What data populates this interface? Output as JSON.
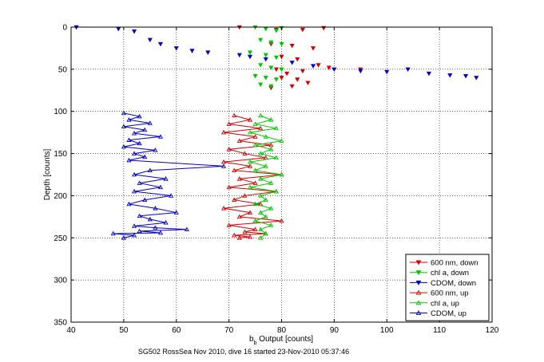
{
  "chart_data": {
    "type": "scatter",
    "title": "",
    "xlabel_main": "b",
    "xlabel_sub": "b",
    "xlabel_rest": " Output [counts]",
    "ylabel": "Depth [counts]",
    "caption": "SG502 RossSea Nov 2010, dive 16 started 23-Nov-2010 05:37:46",
    "xlim": [
      40,
      120
    ],
    "ylim": [
      0,
      350
    ],
    "y_inverted": true,
    "grid": true,
    "x_ticks": [
      "40",
      "50",
      "60",
      "70",
      "80",
      "90",
      "100",
      "110",
      "120"
    ],
    "y_ticks": [
      "0",
      "50",
      "100",
      "150",
      "200",
      "250",
      "300",
      "350"
    ],
    "legend_position": "bottom-right",
    "series": [
      {
        "name": "600 nm, down",
        "color": "#d40000",
        "marker": "triangle-down",
        "connected": false,
        "x": [
          72,
          79,
          84,
          88,
          78,
          82,
          86,
          80,
          83,
          87,
          79,
          81,
          84,
          89,
          95,
          80,
          83,
          85,
          82,
          78
        ],
        "y": [
          0,
          3,
          3,
          1,
          20,
          22,
          25,
          35,
          38,
          45,
          50,
          55,
          52,
          48,
          50,
          60,
          62,
          66,
          70,
          72
        ]
      },
      {
        "name": "chl a, down",
        "color": "#00c800",
        "marker": "triangle-down",
        "connected": false,
        "x": [
          75,
          77,
          79,
          80,
          76,
          78,
          80,
          74,
          77,
          79,
          76,
          78,
          80,
          75,
          77,
          79,
          76,
          78
        ],
        "y": [
          0,
          2,
          4,
          1,
          15,
          18,
          20,
          30,
          33,
          36,
          45,
          48,
          50,
          58,
          60,
          62,
          68,
          70
        ]
      },
      {
        "name": "CDOM, down",
        "color": "#0000c8",
        "marker": "triangle-down",
        "connected": false,
        "x": [
          41,
          49,
          52,
          55,
          57,
          60,
          63,
          66,
          72,
          74,
          77,
          82,
          86,
          90,
          95,
          100,
          104,
          108,
          112,
          115,
          117
        ],
        "y": [
          0,
          2,
          5,
          15,
          20,
          25,
          28,
          30,
          33,
          35,
          38,
          42,
          46,
          50,
          52,
          53,
          50,
          55,
          57,
          58,
          60
        ]
      },
      {
        "name": "600 nm, up",
        "color": "#d40000",
        "marker": "triangle-up",
        "connected": true,
        "x": [
          71,
          74,
          70,
          76,
          69,
          75,
          72,
          78,
          70,
          73,
          77,
          69,
          74,
          71,
          80,
          72,
          75,
          70,
          79,
          73,
          71,
          76,
          69,
          74,
          72,
          80,
          70,
          75,
          73,
          77,
          71,
          74,
          72
        ],
        "y": [
          105,
          110,
          115,
          120,
          125,
          130,
          135,
          140,
          145,
          150,
          155,
          160,
          165,
          170,
          175,
          180,
          185,
          190,
          195,
          200,
          205,
          210,
          215,
          220,
          225,
          230,
          235,
          240,
          243,
          245,
          247,
          249,
          250
        ]
      },
      {
        "name": "chl a, up",
        "color": "#00c800",
        "marker": "triangle-up",
        "connected": true,
        "x": [
          76,
          78,
          75,
          79,
          74,
          77,
          80,
          75,
          78,
          76,
          79,
          74,
          77,
          75,
          80,
          76,
          78,
          74,
          79,
          76,
          77,
          75,
          78,
          76,
          77,
          75,
          78,
          76,
          77,
          76
        ],
        "y": [
          105,
          110,
          115,
          120,
          125,
          130,
          135,
          140,
          145,
          150,
          155,
          160,
          165,
          170,
          175,
          180,
          185,
          190,
          195,
          200,
          205,
          210,
          215,
          220,
          225,
          230,
          235,
          240,
          245,
          250
        ]
      },
      {
        "name": "CDOM, up",
        "color": "#0000c8",
        "marker": "triangle-up",
        "connected": true,
        "x": [
          50,
          53,
          51,
          55,
          50,
          54,
          52,
          57,
          51,
          53,
          50,
          56,
          52,
          54,
          51,
          69,
          55,
          52,
          58,
          53,
          57,
          52,
          59,
          54,
          51,
          56,
          60,
          53,
          55,
          58,
          52,
          56,
          62,
          53,
          57,
          48,
          52,
          50
        ],
        "y": [
          102,
          106,
          110,
          114,
          118,
          122,
          126,
          130,
          134,
          138,
          142,
          146,
          150,
          154,
          158,
          165,
          170,
          175,
          180,
          185,
          190,
          195,
          200,
          205,
          210,
          215,
          220,
          224,
          228,
          232,
          236,
          238,
          240,
          242,
          244,
          245,
          247,
          250
        ]
      }
    ]
  }
}
